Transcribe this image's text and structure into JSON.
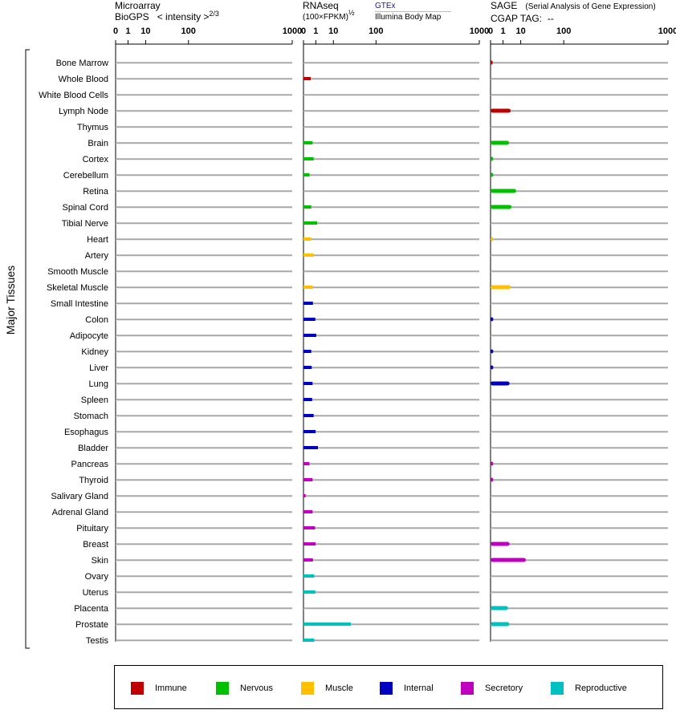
{
  "headers": {
    "microarray": {
      "line1": "Microarray",
      "line2_a": "BioGPS",
      "line2_b": "< intensity >",
      "exp": "2/3"
    },
    "rnaseq": {
      "line1": "RNAseq",
      "line2": "(100×FPKM)",
      "exp": "½",
      "source1": "GTEx",
      "source2": "Illumina Body Map"
    },
    "sage": {
      "line1": "SAGE",
      "line1_note": "(Serial Analysis of Gene Expression)",
      "line2": "CGAP TAG:",
      "line2_value": "--"
    }
  },
  "chart_data": {
    "type": "bar",
    "ylabel": "Major Tissues",
    "categories": [
      "Bone Marrow",
      "Whole Blood",
      "White Blood Cells",
      "Lymph Node",
      "Thymus",
      "Brain",
      "Cortex",
      "Cerebellum",
      "Retina",
      "Spinal Cord",
      "Tibial Nerve",
      "Heart",
      "Artery",
      "Smooth Muscle",
      "Skeletal Muscle",
      "Small Intestine",
      "Colon",
      "Adipocyte",
      "Kidney",
      "Liver",
      "Lung",
      "Spleen",
      "Stomach",
      "Esophagus",
      "Bladder",
      "Pancreas",
      "Thyroid",
      "Salivary Gland",
      "Adrenal Gland",
      "Pituitary",
      "Breast",
      "Skin",
      "Ovary",
      "Uterus",
      "Placenta",
      "Prostate",
      "Testis"
    ],
    "groups": [
      "Immune",
      "Immune",
      "Immune",
      "Immune",
      "Immune",
      "Nervous",
      "Nervous",
      "Nervous",
      "Nervous",
      "Nervous",
      "Nervous",
      "Muscle",
      "Muscle",
      "Muscle",
      "Muscle",
      "Internal",
      "Internal",
      "Internal",
      "Internal",
      "Internal",
      "Internal",
      "Internal",
      "Internal",
      "Internal",
      "Internal",
      "Secretory",
      "Secretory",
      "Secretory",
      "Secretory",
      "Secretory",
      "Secretory",
      "Secretory",
      "Reproductive",
      "Reproductive",
      "Reproductive",
      "Reproductive",
      "Reproductive"
    ],
    "panels": [
      {
        "name": "Microarray",
        "tick_labels": [
          "0",
          "1",
          "10",
          "100",
          "1000"
        ],
        "xlim": [
          0,
          1000
        ],
        "values": [
          0,
          0,
          0,
          0,
          0,
          0,
          0,
          0,
          0,
          0,
          0,
          0,
          0,
          0,
          0,
          0,
          0,
          0,
          0,
          0,
          0,
          0,
          0,
          0,
          0,
          0,
          0,
          0,
          0,
          0,
          0,
          0,
          0,
          0,
          0,
          0,
          0
        ]
      },
      {
        "name": "RNAseq",
        "tick_labels": [
          "0",
          "1",
          "10",
          "100",
          "1000"
        ],
        "xlim": [
          0,
          1000
        ],
        "values": [
          0,
          0.25,
          0,
          0,
          0,
          0.45,
          0.6,
          0.15,
          0,
          0.3,
          1.3,
          0.3,
          0.6,
          0,
          0.5,
          0.5,
          0.9,
          1.1,
          0.3,
          0.35,
          0.45,
          0.4,
          0.6,
          0.95,
          1.5,
          0.15,
          0.45,
          0.01,
          0.45,
          0.85,
          0.95,
          0.5,
          0.7,
          0.9,
          0,
          33,
          0.7
        ]
      },
      {
        "name": "SAGE",
        "tick_labels": [
          "0",
          "1",
          "10",
          "100",
          "1000"
        ],
        "xlim": [
          0,
          1000
        ],
        "values": [
          0.01,
          0,
          0,
          3.5,
          0,
          2.8,
          0.02,
          0.02,
          6.5,
          3.9,
          0,
          0.02,
          0,
          0,
          3.5,
          0,
          0.02,
          0,
          0.02,
          0.02,
          3,
          0,
          0,
          0,
          0,
          0.02,
          0.02,
          0,
          0,
          0,
          3,
          15,
          0,
          0,
          2.4,
          2.9,
          0
        ]
      }
    ],
    "legend": [
      {
        "name": "Immune",
        "color": "#c00000"
      },
      {
        "name": "Nervous",
        "color": "#00c000"
      },
      {
        "name": "Muscle",
        "color": "#ffc000"
      },
      {
        "name": "Internal",
        "color": "#0000c0"
      },
      {
        "name": "Secretory",
        "color": "#c000c0"
      },
      {
        "name": "Reproductive",
        "color": "#00c0c0"
      }
    ]
  }
}
